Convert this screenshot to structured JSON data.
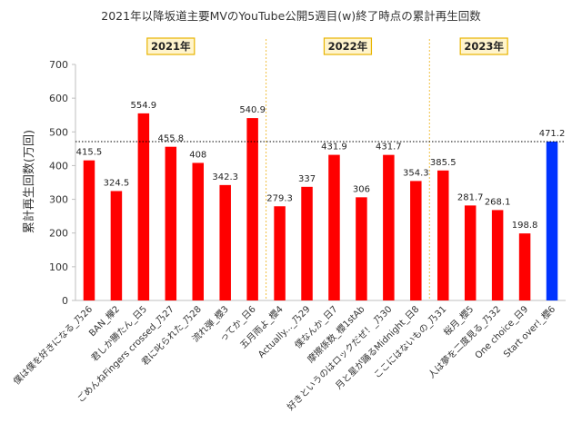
{
  "chart_data": {
    "type": "bar",
    "title": "2021年以降坂道主要MVのYouTube公開5週目(w)終了時点の累計再生回数",
    "ylabel": "累計再生回数(万回)",
    "xlabel": "",
    "ylim": [
      0,
      700
    ],
    "yticks": [
      "0",
      "100",
      "200",
      "300",
      "400",
      "500",
      "600",
      "700"
    ],
    "grid": false,
    "reference_line": 471.2,
    "colors": {
      "default": "#ff0000",
      "highlight": "#0033ff",
      "year_box_fill": "#fff4cc",
      "year_box_border": "#e8b400",
      "divider": "#f0c040"
    },
    "year_groups": [
      {
        "label": "2021年",
        "start": 0,
        "end": 6
      },
      {
        "label": "2022年",
        "start": 7,
        "end": 12
      },
      {
        "label": "2023年",
        "start": 13,
        "end": 16
      }
    ],
    "categories": [
      "僕は僕を好きになる_乃26",
      "BAN_欅2",
      "君しか勝たん_日5",
      "ごめんねFingers crossed_乃27",
      "君に叱られた_乃28",
      "流れ弾_櫻3",
      "ってか_日6",
      "五月雨よ_櫻4",
      "Actually..._乃29",
      "僕なんか_日7",
      "摩擦係数_櫻1stAb",
      "好きというのはロックだぜ！_乃30",
      "月と星が踊るMidnight_日8",
      "ここにはないもの_乃31",
      "桜月_櫻5",
      "人は夢を二度見る_乃32",
      "One choice_日9",
      "Start over!_櫻6"
    ],
    "values": [
      415.5,
      324.5,
      554.9,
      455.8,
      408,
      342.3,
      540.9,
      279.3,
      337,
      431.9,
      306,
      431.7,
      354.3,
      385.5,
      281.7,
      268.1,
      198.8,
      471.2
    ],
    "value_labels": [
      "415.5",
      "324.5",
      "554.9",
      "455.8",
      "408",
      "342.3",
      "540.9",
      "279.3",
      "337",
      "431.9",
      "306",
      "431.7",
      "354.3",
      "385.5",
      "281.7",
      "268.1",
      "198.8",
      "471.2"
    ],
    "highlight_index": 17
  }
}
